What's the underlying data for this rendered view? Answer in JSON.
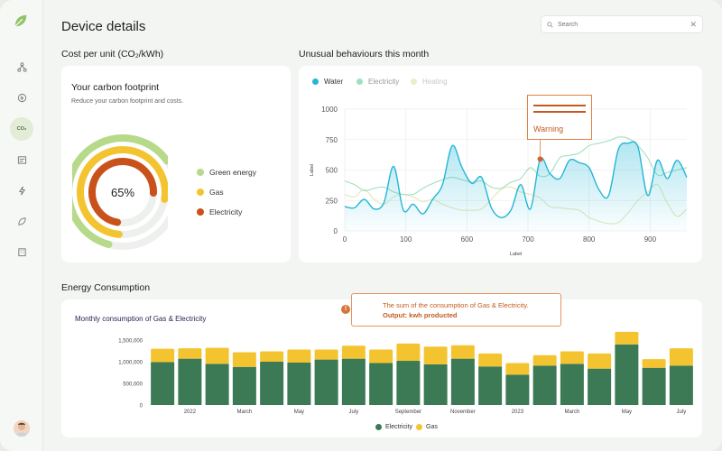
{
  "page": {
    "title": "Device details"
  },
  "search": {
    "placeholder": "Search",
    "clear_icon": "close-icon"
  },
  "sidebar": {
    "items": [
      {
        "name": "network",
        "label": ""
      },
      {
        "name": "energy",
        "label": ""
      },
      {
        "name": "co2",
        "label": "CO₂"
      },
      {
        "name": "reports",
        "label": ""
      },
      {
        "name": "power",
        "label": ""
      },
      {
        "name": "leaf",
        "label": ""
      },
      {
        "name": "building",
        "label": ""
      }
    ],
    "active": "co2"
  },
  "cost_section": {
    "title": "Cost per unit (CO₂/kWh)"
  },
  "carbon_card": {
    "title": "Your carbon footprint",
    "subtitle": "Reduce your carbon footprint and costs.",
    "center_value": "65%",
    "legend": [
      {
        "label": "Green energy",
        "color": "#b6d98a"
      },
      {
        "label": "Gas",
        "color": "#f4c430"
      },
      {
        "label": "Electricity",
        "color": "#c9521b"
      }
    ]
  },
  "unusual_section": {
    "title": "Unusual behaviours this month"
  },
  "warning": {
    "text": "Warning"
  },
  "energy_section": {
    "title": "Energy Consumption"
  },
  "tooltip": {
    "line1": "The sum of the consumption of Gas & Electricity.",
    "line2": "Output: kwh producted"
  },
  "chart_data": [
    {
      "type": "line",
      "xlabel": "Label",
      "ylabel": "Label",
      "xticks": [
        "0",
        "100",
        "600",
        "700",
        "800",
        "900"
      ],
      "ylim": [
        0,
        1000
      ],
      "yticks": [
        0,
        250,
        500,
        750,
        1000
      ],
      "series": [
        {
          "name": "Water",
          "color": "#22b7d6",
          "values": [
            200,
            190,
            260,
            180,
            230,
            530,
            170,
            220,
            140,
            260,
            380,
            700,
            520,
            390,
            440,
            190,
            110,
            170,
            380,
            180,
            590,
            470,
            430,
            580,
            560,
            520,
            340,
            290,
            670,
            720,
            690,
            290,
            580,
            430,
            580,
            440
          ]
        },
        {
          "name": "Electricity",
          "color": "#9fe0c0",
          "values": [
            410,
            380,
            330,
            350,
            360,
            320,
            300,
            300,
            350,
            390,
            420,
            440,
            420,
            400,
            410,
            360,
            350,
            400,
            430,
            520,
            450,
            470,
            600,
            620,
            640,
            700,
            720,
            740,
            770,
            760,
            700,
            600,
            460,
            480,
            500,
            520
          ]
        },
        {
          "name": "Heating",
          "color": "#e3e7b6",
          "values": [
            300,
            280,
            340,
            260,
            220,
            280,
            300,
            280,
            240,
            260,
            220,
            190,
            170,
            170,
            180,
            260,
            340,
            360,
            320,
            300,
            270,
            200,
            190,
            180,
            170,
            110,
            80,
            60,
            70,
            150,
            250,
            320,
            380,
            230,
            120,
            180
          ]
        }
      ],
      "annotation": {
        "label": "Warning",
        "x_index": 20
      }
    },
    {
      "type": "bar",
      "title": "Monthly consumption of Gas & Electricity",
      "yticks": [
        "0",
        "500,000",
        "1,000,000",
        "1,500,000"
      ],
      "ylim": [
        0,
        1500000
      ],
      "xticks": [
        "2022",
        "March",
        "May",
        "July",
        "September",
        "November",
        "2023",
        "March",
        "May",
        "July"
      ],
      "series": [
        {
          "name": "Electricity",
          "color": "#3c7a55",
          "values": [
            990000,
            1070000,
            950000,
            880000,
            1000000,
            980000,
            1050000,
            1070000,
            970000,
            1020000,
            940000,
            1070000,
            890000,
            700000,
            910000,
            950000,
            840000,
            1400000,
            860000,
            910000
          ]
        },
        {
          "name": "Gas",
          "color": "#f4c430",
          "values": [
            310000,
            240000,
            370000,
            340000,
            240000,
            300000,
            230000,
            300000,
            310000,
            400000,
            410000,
            310000,
            300000,
            270000,
            240000,
            290000,
            350000,
            290000,
            200000,
            400000
          ]
        }
      ]
    }
  ]
}
